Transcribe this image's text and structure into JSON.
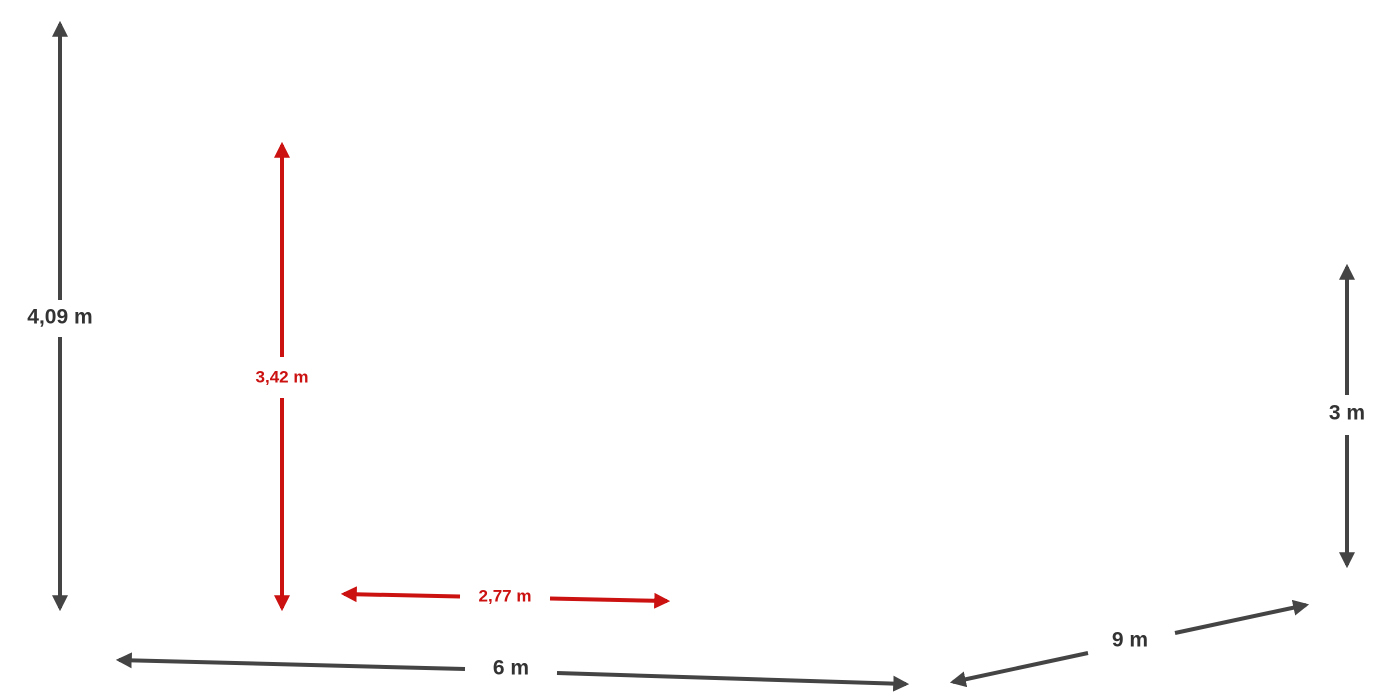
{
  "dimensions": {
    "left_height": "4,09 m",
    "inner_height": "3,42 m",
    "inner_width": "2,77 m",
    "front_length": "6 m",
    "side_length": "9 m",
    "right_height": "3 m"
  }
}
